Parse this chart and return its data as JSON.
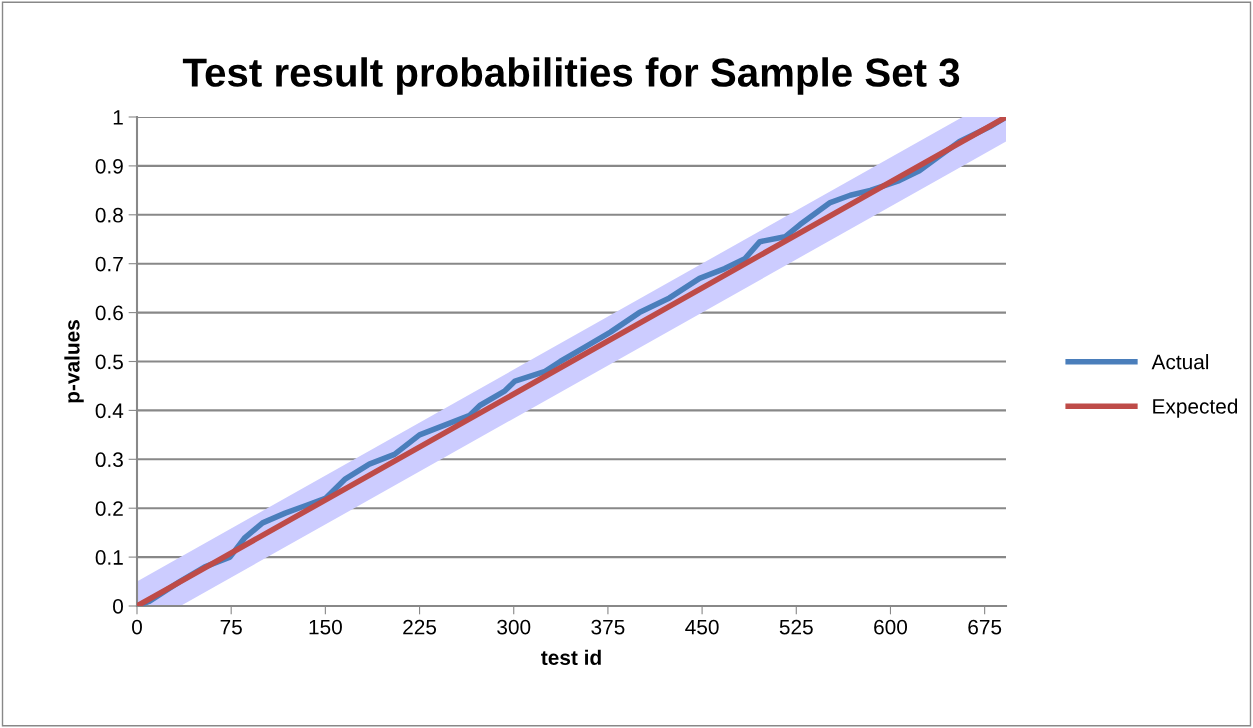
{
  "chart_data": {
    "type": "line",
    "title": "Test result probabilities for Sample Set 3",
    "xlabel": "test id",
    "ylabel": "p-values",
    "xlim": [
      0,
      692
    ],
    "xticks": [
      0,
      75,
      150,
      225,
      300,
      375,
      450,
      525,
      600,
      675
    ],
    "ylim": [
      0,
      1
    ],
    "yticks": [
      0,
      0.1,
      0.2,
      0.3,
      0.4,
      0.5,
      0.6,
      0.7,
      0.8,
      0.9,
      1
    ],
    "grid": "y",
    "legend": "right",
    "marker": "none",
    "line_style": "solid",
    "series": [
      {
        "name": "Actual",
        "color": "#4a7ebb",
        "x": [
          0,
          10,
          34,
          54,
          74,
          86,
          100,
          118,
          134,
          150,
          166,
          185,
          205,
          225,
          245,
          265,
          273,
          293,
          301,
          325,
          337,
          357,
          377,
          400,
          424,
          448,
          468,
          484,
          496,
          516,
          528,
          552,
          568,
          584,
          607,
          623,
          639,
          655,
          679,
          692
        ],
        "values": [
          0,
          0.01,
          0.05,
          0.08,
          0.1,
          0.14,
          0.17,
          0.19,
          0.205,
          0.22,
          0.26,
          0.29,
          0.31,
          0.35,
          0.37,
          0.39,
          0.41,
          0.44,
          0.46,
          0.48,
          0.5,
          0.53,
          0.56,
          0.6,
          0.63,
          0.67,
          0.69,
          0.71,
          0.745,
          0.755,
          0.78,
          0.825,
          0.84,
          0.85,
          0.87,
          0.89,
          0.92,
          0.95,
          0.98,
          1.0
        ]
      },
      {
        "name": "Expected",
        "color": "#be4b48",
        "x": [
          0,
          34.6,
          657.4,
          692
        ],
        "values": [
          0,
          0.05,
          0.95,
          1
        ],
        "lower": [
          0,
          0,
          0.9,
          0.95
        ],
        "upper": [
          0.05,
          0.1,
          1,
          1
        ]
      }
    ]
  }
}
